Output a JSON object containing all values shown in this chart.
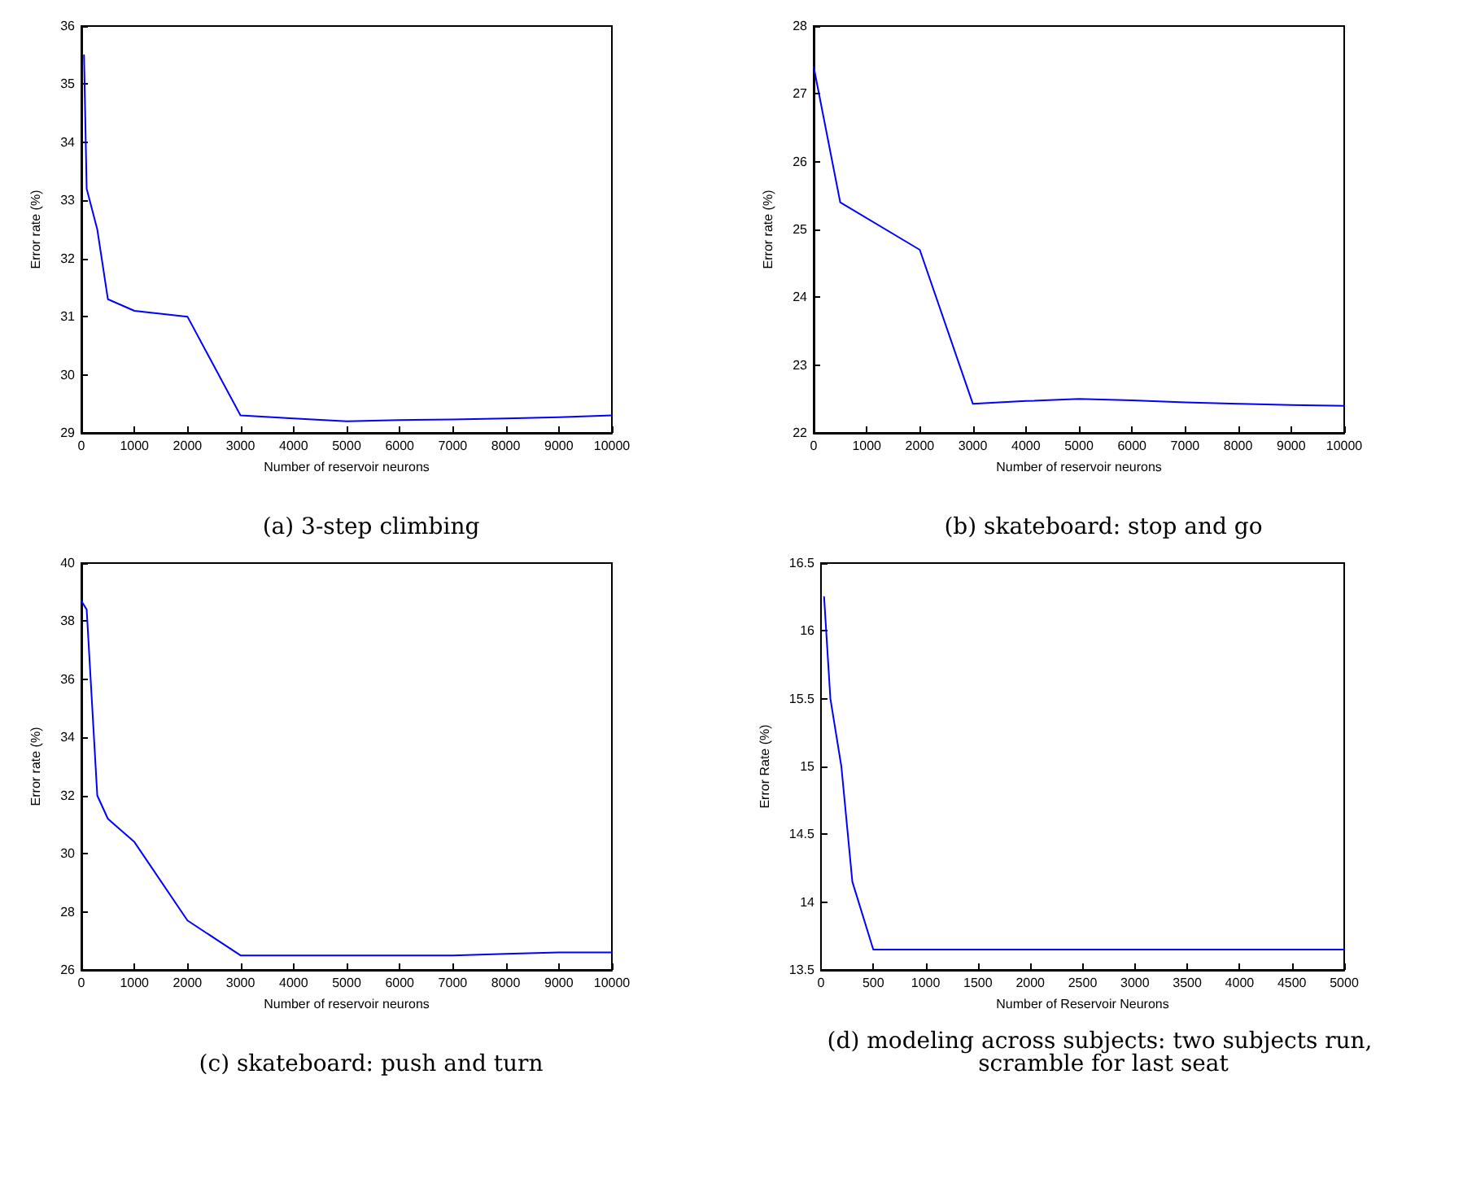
{
  "chart_data": [
    {
      "type": "line",
      "title": "(a) 3-step climbing",
      "xlabel": "Number of reservoir neurons",
      "ylabel": "Error rate (%)",
      "xlim": [
        0,
        10000
      ],
      "xticks": [
        0,
        1000,
        2000,
        3000,
        4000,
        5000,
        6000,
        7000,
        8000,
        9000,
        10000
      ],
      "ylim": [
        29,
        36
      ],
      "yticks": [
        29,
        30,
        31,
        32,
        33,
        34,
        35,
        36
      ],
      "grid": false,
      "marker": "none",
      "x": [
        50,
        100,
        300,
        500,
        1000,
        2000,
        3000,
        4000,
        5000,
        6000,
        7000,
        8000,
        9000,
        10000
      ],
      "series": [
        {
          "color": "#0000ff",
          "values": [
            35.5,
            33.2,
            32.5,
            31.3,
            31.1,
            31.0,
            29.3,
            29.25,
            29.2,
            29.22,
            29.23,
            29.25,
            29.27,
            29.3
          ]
        }
      ]
    },
    {
      "type": "line",
      "title": "(b) skateboard: stop and go",
      "xlabel": "Number of reservoir neurons",
      "ylabel": "Error rate (%)",
      "xlim": [
        0,
        10000
      ],
      "xticks": [
        0,
        1000,
        2000,
        3000,
        4000,
        5000,
        6000,
        7000,
        8000,
        9000,
        10000
      ],
      "ylim": [
        22,
        28
      ],
      "yticks": [
        22,
        23,
        24,
        25,
        26,
        27,
        28
      ],
      "grid": false,
      "marker": "none",
      "x": [
        0,
        500,
        2000,
        3000,
        4000,
        5000,
        6000,
        7000,
        8000,
        9000,
        10000
      ],
      "series": [
        {
          "color": "#0000ff",
          "values": [
            27.4,
            25.4,
            24.7,
            22.43,
            22.47,
            22.5,
            22.48,
            22.45,
            22.43,
            22.41,
            22.4
          ]
        }
      ]
    },
    {
      "type": "line",
      "title": "(c) skateboard: push and turn",
      "xlabel": "Number of reservoir neurons",
      "ylabel": "Error rate (%)",
      "xlim": [
        0,
        10000
      ],
      "xticks": [
        0,
        1000,
        2000,
        3000,
        4000,
        5000,
        6000,
        7000,
        8000,
        9000,
        10000
      ],
      "ylim": [
        26,
        40
      ],
      "yticks": [
        26,
        28,
        30,
        32,
        34,
        36,
        38,
        40
      ],
      "grid": false,
      "marker": "none",
      "x": [
        0,
        100,
        300,
        500,
        1000,
        2000,
        3000,
        4000,
        5000,
        6000,
        7000,
        8000,
        9000,
        10000
      ],
      "series": [
        {
          "color": "#0000ff",
          "values": [
            38.7,
            38.4,
            32.0,
            31.2,
            30.4,
            27.7,
            26.5,
            26.5,
            26.5,
            26.5,
            26.5,
            26.55,
            26.6,
            26.6
          ]
        }
      ]
    },
    {
      "type": "line",
      "title": "(d) modeling across subjects: two subjects run, scramble for last seat",
      "xlabel": "Number of Reservoir Neurons",
      "ylabel": "Error Rate (%)",
      "xlim": [
        0,
        5000
      ],
      "xticks": [
        0,
        500,
        1000,
        1500,
        2000,
        2500,
        3000,
        3500,
        4000,
        4500,
        5000
      ],
      "ylim": [
        13.5,
        16.5
      ],
      "yticks": [
        13.5,
        14,
        14.5,
        15,
        15.5,
        16,
        16.5
      ],
      "grid": false,
      "marker": "none",
      "x": [
        30,
        90,
        195,
        300,
        500,
        1000,
        2000,
        3000,
        4000,
        5000
      ],
      "series": [
        {
          "color": "#0000ff",
          "values": [
            16.25,
            15.5,
            15.0,
            14.15,
            13.65,
            13.65,
            13.65,
            13.65,
            13.65,
            13.65
          ]
        }
      ]
    }
  ]
}
